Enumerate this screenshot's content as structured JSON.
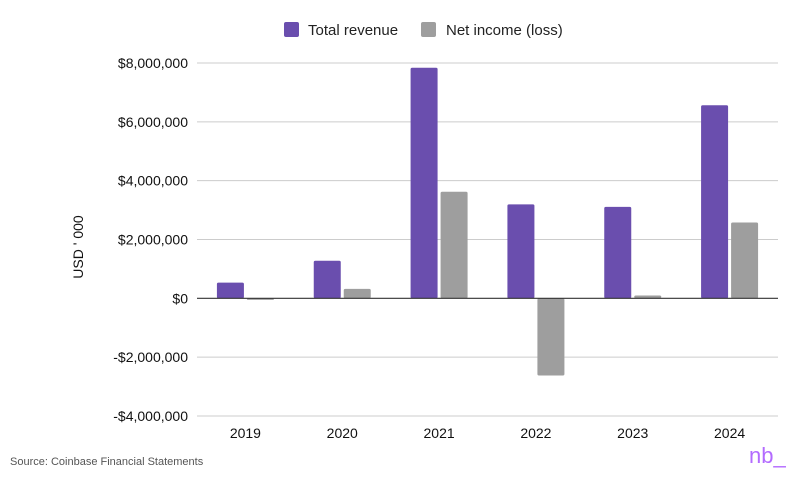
{
  "chart_data": {
    "type": "bar",
    "title": "",
    "xlabel": "",
    "ylabel": "USD ' 000",
    "categories": [
      "2019",
      "2020",
      "2021",
      "2022",
      "2023",
      "2024"
    ],
    "series": [
      {
        "name": "Total revenue",
        "color": "#6a4eae",
        "values": [
          534000,
          1277000,
          7839000,
          3194000,
          3108000,
          6564000
        ]
      },
      {
        "name": "Net income (loss)",
        "color": "#9e9e9e",
        "values": [
          -30000,
          322000,
          3624000,
          -2625000,
          95000,
          2579000
        ]
      }
    ],
    "ylim": [
      -4000000,
      8000000
    ],
    "yticks": [
      -4000000,
      -2000000,
      0,
      2000000,
      4000000,
      6000000,
      8000000
    ],
    "ytick_labels": [
      "-$4,000,000",
      "-$2,000,000",
      "$0",
      "$2,000,000",
      "$4,000,000",
      "$6,000,000",
      "$8,000,000"
    ],
    "grid": true,
    "legend_position": "top-center"
  },
  "footer": {
    "source": "Source: Coinbase Financial Statements",
    "logo": "nb_"
  }
}
